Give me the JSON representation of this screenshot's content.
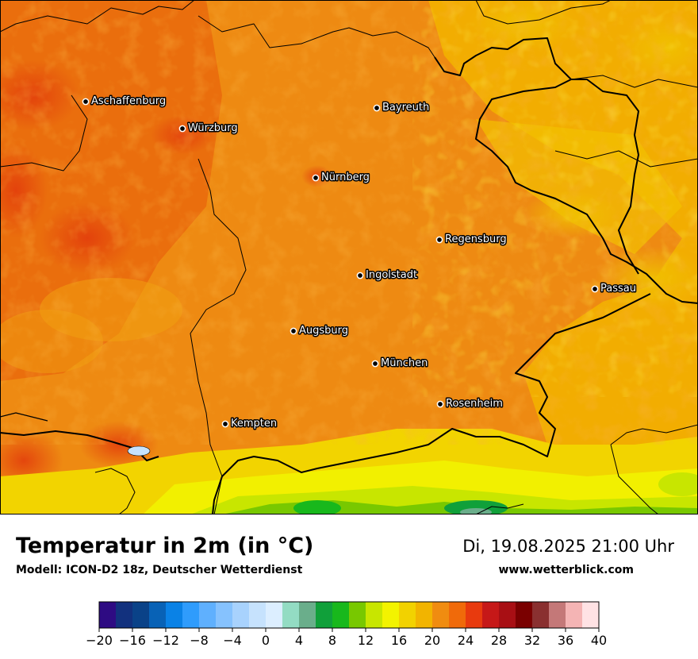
{
  "header": {
    "title": "Temperatur in 2m (in °C)",
    "subtitle": "Modell: ICON-D2 18z, Deutscher Wetterdienst",
    "datetime": "Di, 19.08.2025 21:00 Uhr",
    "website": "www.wetterblick.com"
  },
  "cities": [
    {
      "name": "Aschaffenburg"
    },
    {
      "name": "Bayreuth"
    },
    {
      "name": "Würzburg"
    },
    {
      "name": "Nürnberg"
    },
    {
      "name": "Regensburg"
    },
    {
      "name": "Ingolstadt"
    },
    {
      "name": "Passau"
    },
    {
      "name": "Augsburg"
    },
    {
      "name": "München"
    },
    {
      "name": "Rosenheim"
    },
    {
      "name": "Kempten"
    }
  ],
  "legend": {
    "unit": "°C",
    "min": -20,
    "max": 40,
    "step": 2,
    "tick_labels": [
      "−20",
      "−16",
      "−12",
      "−8",
      "−4",
      "0",
      "4",
      "8",
      "12",
      "16",
      "20",
      "24",
      "28",
      "32",
      "36",
      "40"
    ],
    "colors": [
      "#2e0b83",
      "#12317e",
      "#0a4288",
      "#0862b6",
      "#0a82e6",
      "#2f9cfc",
      "#5fb0fe",
      "#86c2fe",
      "#a8d2fd",
      "#c6e2fd",
      "#dceeff",
      "#93dcc3",
      "#6aae8b",
      "#10a03a",
      "#18b81c",
      "#78c800",
      "#c8e600",
      "#f3f300",
      "#f2d200",
      "#f2b400",
      "#f08c10",
      "#f06a0a",
      "#e83a0e",
      "#c61818",
      "#a80f14",
      "#7a0000",
      "#8a3030",
      "#c47878",
      "#f4b4b4",
      "#ffe2e4"
    ]
  }
}
